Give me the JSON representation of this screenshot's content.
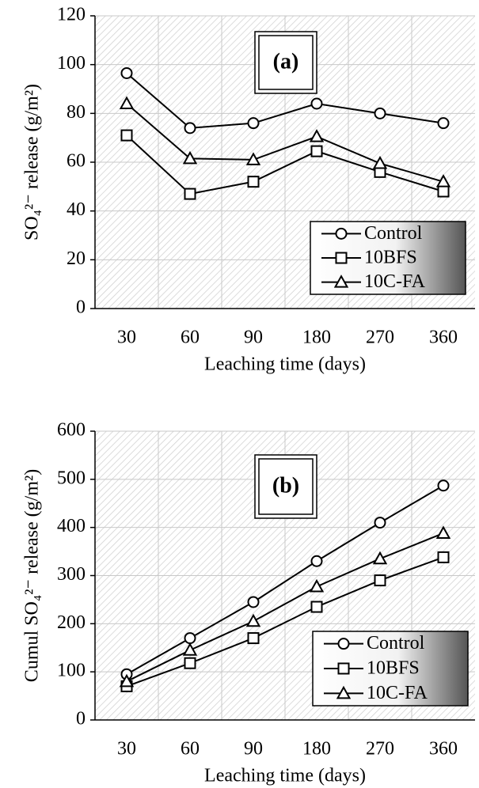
{
  "chart_data": [
    {
      "type": "line",
      "annotation": "(a)",
      "x_label": "Leaching time (days)",
      "y_label": "SO₄²⁻ release (g/m²)",
      "categories": [
        "30",
        "60",
        "90",
        "180",
        "270",
        "360"
      ],
      "series": [
        {
          "name": "Control",
          "color": "#000000",
          "marker": "circle",
          "values": [
            96.5,
            74,
            76,
            84,
            80,
            76
          ]
        },
        {
          "name": "10BFS",
          "color": "#000000",
          "marker": "square",
          "values": [
            71,
            47,
            52,
            64.5,
            56,
            48
          ]
        },
        {
          "name": "10C-FA",
          "color": "#000000",
          "marker": "triangle",
          "values": [
            84,
            61.5,
            61,
            70.5,
            59.5,
            52
          ]
        }
      ],
      "ylim": [
        0,
        120
      ],
      "yticks": [
        0,
        20,
        40,
        60,
        80,
        100,
        120
      ],
      "grid": true,
      "legend": "lower right"
    },
    {
      "type": "line",
      "annotation": "(b)",
      "x_label": "Leaching time (days)",
      "y_label": "Cumul SO₄²⁻ release (g/m²)",
      "categories": [
        "30",
        "60",
        "90",
        "180",
        "270",
        "360"
      ],
      "series": [
        {
          "name": "Control",
          "color": "#000000",
          "marker": "circle",
          "values": [
            95,
            170,
            245,
            330,
            410,
            487
          ]
        },
        {
          "name": "10BFS",
          "color": "#000000",
          "marker": "square",
          "values": [
            70,
            118,
            170,
            235,
            290,
            338
          ]
        },
        {
          "name": "10C-FA",
          "color": "#000000",
          "marker": "triangle",
          "values": [
            80,
            145,
            205,
            277,
            335,
            388
          ]
        }
      ],
      "ylim": [
        0,
        600
      ],
      "yticks": [
        0,
        100,
        200,
        300,
        400,
        500,
        600
      ],
      "grid": true,
      "legend": "lower right"
    }
  ]
}
